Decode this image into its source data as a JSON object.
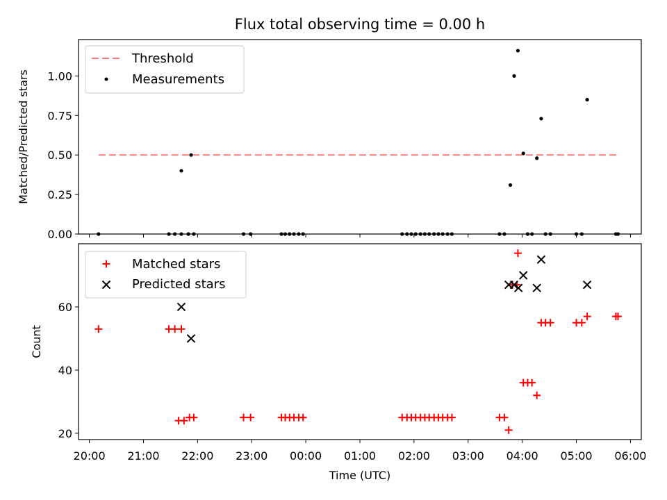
{
  "chart_data": [
    {
      "type": "scatter",
      "title": "Flux total observing time = 0.00 h",
      "xlabel": "",
      "ylabel": "Matched/Predicted stars",
      "ylim": [
        0,
        1.23
      ],
      "yticks": [
        "0.00",
        "0.25",
        "0.50",
        "0.75",
        "1.00"
      ],
      "yticks_values": [
        0,
        0.25,
        0.5,
        0.75,
        1.0
      ],
      "grid": false,
      "legend_position": "top-left",
      "threshold": {
        "name": "Threshold",
        "color": "#f08080",
        "style": "dashed",
        "value": 0.5,
        "x_start_h": 20.17,
        "x_end_h": 29.75
      },
      "series": [
        {
          "name": "Measurements",
          "color": "#000000",
          "marker": "dot",
          "points": [
            [
              20.17,
              0
            ],
            [
              21.47,
              0
            ],
            [
              21.58,
              0
            ],
            [
              21.7,
              0
            ],
            [
              21.83,
              0
            ],
            [
              21.93,
              0
            ],
            [
              21.7,
              0.4
            ],
            [
              21.88,
              0.5
            ],
            [
              22.85,
              0
            ],
            [
              22.98,
              0
            ],
            [
              23.55,
              0
            ],
            [
              23.62,
              0
            ],
            [
              23.7,
              0
            ],
            [
              23.78,
              0
            ],
            [
              23.87,
              0
            ],
            [
              23.95,
              0
            ],
            [
              25.78,
              0
            ],
            [
              25.87,
              0
            ],
            [
              25.95,
              0
            ],
            [
              26.03,
              0
            ],
            [
              26.12,
              0
            ],
            [
              26.2,
              0
            ],
            [
              26.28,
              0
            ],
            [
              26.37,
              0
            ],
            [
              26.45,
              0
            ],
            [
              26.53,
              0
            ],
            [
              26.62,
              0
            ],
            [
              26.7,
              0
            ],
            [
              27.58,
              0
            ],
            [
              27.67,
              0
            ],
            [
              27.78,
              0.31
            ],
            [
              27.85,
              1.0
            ],
            [
              27.92,
              1.16
            ],
            [
              28.02,
              0.51
            ],
            [
              28.1,
              0
            ],
            [
              28.18,
              0
            ],
            [
              28.27,
              0.48
            ],
            [
              28.35,
              0.73
            ],
            [
              28.43,
              0
            ],
            [
              28.52,
              0
            ],
            [
              29.0,
              0
            ],
            [
              29.1,
              0
            ],
            [
              29.2,
              0.85
            ],
            [
              29.73,
              0
            ],
            [
              29.77,
              0
            ]
          ]
        }
      ]
    },
    {
      "type": "scatter",
      "title": "",
      "xlabel": "Time (UTC)",
      "ylabel": "Count",
      "ylim": [
        18,
        80
      ],
      "yticks": [
        "20",
        "40",
        "60"
      ],
      "yticks_values": [
        20,
        40,
        60
      ],
      "xlim_h": [
        19.8,
        30.2
      ],
      "xticks": [
        "20:00",
        "21:00",
        "22:00",
        "23:00",
        "00:00",
        "01:00",
        "02:00",
        "03:00",
        "04:00",
        "05:00",
        "06:00"
      ],
      "xticks_values_h": [
        20,
        21,
        22,
        23,
        24,
        25,
        26,
        27,
        28,
        29,
        30
      ],
      "grid": false,
      "legend_position": "top-left",
      "series": [
        {
          "name": "Matched stars",
          "color": "#ff0000",
          "marker": "plus",
          "points": [
            [
              20.17,
              53
            ],
            [
              21.47,
              53
            ],
            [
              21.58,
              53
            ],
            [
              21.7,
              53
            ],
            [
              21.65,
              24
            ],
            [
              21.75,
              24
            ],
            [
              21.85,
              25
            ],
            [
              21.93,
              25
            ],
            [
              22.85,
              25
            ],
            [
              22.98,
              25
            ],
            [
              23.55,
              25
            ],
            [
              23.62,
              25
            ],
            [
              23.7,
              25
            ],
            [
              23.78,
              25
            ],
            [
              23.87,
              25
            ],
            [
              23.95,
              25
            ],
            [
              25.78,
              25
            ],
            [
              25.87,
              25
            ],
            [
              25.95,
              25
            ],
            [
              26.03,
              25
            ],
            [
              26.12,
              25
            ],
            [
              26.2,
              25
            ],
            [
              26.28,
              25
            ],
            [
              26.37,
              25
            ],
            [
              26.45,
              25
            ],
            [
              26.53,
              25
            ],
            [
              26.62,
              25
            ],
            [
              26.7,
              25
            ],
            [
              27.58,
              25
            ],
            [
              27.67,
              25
            ],
            [
              27.75,
              21
            ],
            [
              27.82,
              67
            ],
            [
              27.9,
              67
            ],
            [
              27.92,
              77
            ],
            [
              28.02,
              36
            ],
            [
              28.1,
              36
            ],
            [
              28.18,
              36
            ],
            [
              28.27,
              32
            ],
            [
              28.35,
              55
            ],
            [
              28.43,
              55
            ],
            [
              28.52,
              55
            ],
            [
              29.0,
              55
            ],
            [
              29.1,
              55
            ],
            [
              29.2,
              57
            ],
            [
              29.73,
              57
            ],
            [
              29.77,
              57
            ]
          ]
        },
        {
          "name": "Predicted stars",
          "color": "#000000",
          "marker": "x",
          "points": [
            [
              21.7,
              60
            ],
            [
              21.88,
              50
            ],
            [
              27.75,
              67
            ],
            [
              27.85,
              67
            ],
            [
              27.93,
              66
            ],
            [
              28.02,
              70
            ],
            [
              28.27,
              66
            ],
            [
              28.35,
              75
            ],
            [
              29.2,
              67
            ]
          ]
        }
      ]
    }
  ]
}
